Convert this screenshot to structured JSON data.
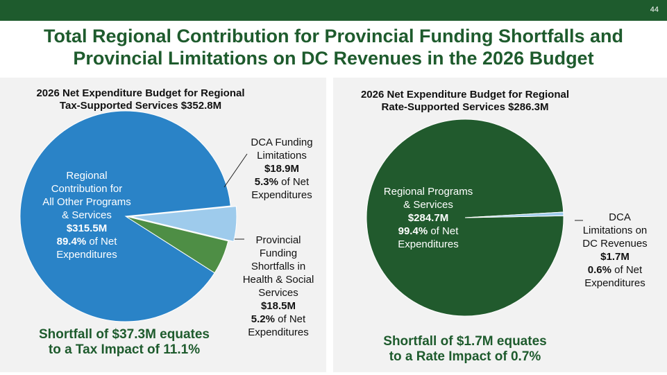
{
  "page_number": "44",
  "title_line1": "Total Regional Contribution for Provincial Funding Shortfalls and",
  "title_line2": "Provincial Limitations on DC Revenues in the 2026 Budget",
  "colors": {
    "header_green": "#1e5b2d",
    "blue": "#2a83c7",
    "light_blue": "#9ecbec",
    "green": "#4e8e45",
    "dark_green": "#215a2d"
  },
  "left": {
    "title_line1": "2026 Net Expenditure Budget for Regional",
    "title_line2": "Tax-Supported Services $352.8M",
    "slices": [
      {
        "lines": [
          "Regional",
          "Contribution for",
          "All Other Programs",
          "& Services"
        ],
        "amount": "$315.5M",
        "pct": "89.4%",
        "pct_text": "of Net",
        "tail": "Expenditures"
      },
      {
        "lines": [
          "DCA Funding",
          "Limitations"
        ],
        "amount": "$18.9M",
        "pct": "5.3%",
        "pct_text": "of Net",
        "tail": "Expenditures"
      },
      {
        "lines": [
          "Provincial",
          "Funding",
          "Shortfalls in",
          "Health & Social",
          "Services"
        ],
        "amount": "$18.5M",
        "pct": "5.2%",
        "pct_text": "of Net",
        "tail": "Expenditures"
      }
    ],
    "shortfall_line1": "Shortfall of $37.3M equates",
    "shortfall_line2": "to a Tax Impact of 11.1%"
  },
  "right": {
    "title_line1": "2026 Net Expenditure Budget for Regional",
    "title_line2": "Rate-Supported Services $286.3M",
    "slices": [
      {
        "lines": [
          "Regional Programs",
          "& Services"
        ],
        "amount": "$284.7M",
        "pct": "99.4%",
        "pct_text": "of Net",
        "tail": "Expenditures"
      },
      {
        "lines": [
          "DCA",
          "Limitations on",
          "DC Revenues"
        ],
        "amount": "$1.7M",
        "pct": "0.6%",
        "pct_text": "of Net",
        "tail": "Expenditures"
      }
    ],
    "shortfall_line1": "Shortfall of $1.7M equates",
    "shortfall_line2": "to a Rate Impact of 0.7%"
  },
  "chart_data": [
    {
      "type": "pie",
      "title": "2026 Net Expenditure Budget for Regional Tax-Supported Services $352.8M",
      "labels": [
        "Regional Contribution for All Other Programs & Services",
        "DCA Funding Limitations",
        "Provincial Funding Shortfalls in Health & Social Services"
      ],
      "values": [
        315.5,
        18.9,
        18.5
      ],
      "percentages": [
        89.4,
        5.3,
        5.2
      ],
      "colors": [
        "#2a83c7",
        "#9ecbec",
        "#4e8e45"
      ]
    },
    {
      "type": "pie",
      "title": "2026 Net Expenditure Budget for Regional Rate-Supported Services $286.3M",
      "labels": [
        "Regional Programs & Services",
        "DCA Limitations on DC Revenues"
      ],
      "values": [
        284.7,
        1.7
      ],
      "percentages": [
        99.4,
        0.6
      ],
      "colors": [
        "#215a2d",
        "#9ecbec"
      ]
    }
  ]
}
